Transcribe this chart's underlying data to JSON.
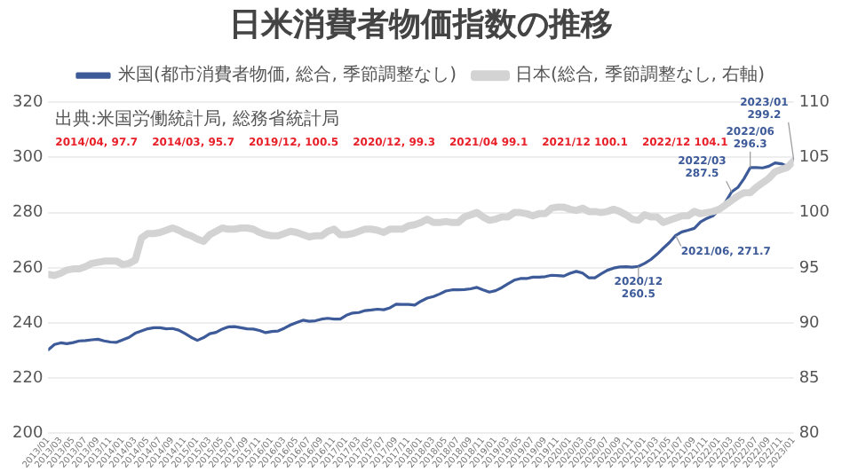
{
  "chart_data": {
    "type": "line",
    "title": "日米消費者物価指数の推移",
    "x": [
      "2013-01",
      "2013-02",
      "2013-03",
      "2013-04",
      "2013-05",
      "2013-06",
      "2013-07",
      "2013-08",
      "2013-09",
      "2013-10",
      "2013-11",
      "2013-12",
      "2014-01",
      "2014-02",
      "2014-03",
      "2014-04",
      "2014-05",
      "2014-06",
      "2014-07",
      "2014-08",
      "2014-09",
      "2014-10",
      "2014-11",
      "2014-12",
      "2015-01",
      "2015-02",
      "2015-03",
      "2015-04",
      "2015-05",
      "2015-06",
      "2015-07",
      "2015-08",
      "2015-09",
      "2015-10",
      "2015-11",
      "2015-12",
      "2016-01",
      "2016-02",
      "2016-03",
      "2016-04",
      "2016-05",
      "2016-06",
      "2016-07",
      "2016-08",
      "2016-09",
      "2016-10",
      "2016-11",
      "2016-12",
      "2017-01",
      "2017-02",
      "2017-03",
      "2017-04",
      "2017-05",
      "2017-06",
      "2017-07",
      "2017-08",
      "2017-09",
      "2017-10",
      "2017-11",
      "2017-12",
      "2018-01",
      "2018-02",
      "2018-03",
      "2018-04",
      "2018-05",
      "2018-06",
      "2018-07",
      "2018-08",
      "2018-09",
      "2018-10",
      "2018-11",
      "2018-12",
      "2019-01",
      "2019-02",
      "2019-03",
      "2019-04",
      "2019-05",
      "2019-06",
      "2019-07",
      "2019-08",
      "2019-09",
      "2019-10",
      "2019-11",
      "2019-12",
      "2020-01",
      "2020-02",
      "2020-03",
      "2020-04",
      "2020-05",
      "2020-06",
      "2020-07",
      "2020-08",
      "2020-09",
      "2020-10",
      "2020-11",
      "2020-12",
      "2021-01",
      "2021-02",
      "2021-03",
      "2021-04",
      "2021-05",
      "2021-06",
      "2021-07",
      "2021-08",
      "2021-09",
      "2021-10",
      "2021-11",
      "2021-12",
      "2022-01",
      "2022-02",
      "2022-03",
      "2022-04",
      "2022-05",
      "2022-06",
      "2022-07",
      "2022-08",
      "2022-09",
      "2022-10",
      "2022-11",
      "2022-12",
      "2023-01"
    ],
    "series": [
      {
        "name": "日本(総合, 季節調整なし, 右軸)",
        "color": "#d3d3d3",
        "axis": "y2",
        "values": [
          94.4,
          94.3,
          94.5,
          94.8,
          94.9,
          94.9,
          95.1,
          95.4,
          95.5,
          95.6,
          95.6,
          95.6,
          95.3,
          95.4,
          95.7,
          97.7,
          98.1,
          98.1,
          98.2,
          98.4,
          98.6,
          98.4,
          98.1,
          97.9,
          97.6,
          97.4,
          98.0,
          98.3,
          98.6,
          98.5,
          98.5,
          98.6,
          98.6,
          98.5,
          98.2,
          98.0,
          97.9,
          97.9,
          98.1,
          98.3,
          98.2,
          98.0,
          97.8,
          97.9,
          97.9,
          98.3,
          98.5,
          98.0,
          98.0,
          98.1,
          98.3,
          98.5,
          98.5,
          98.4,
          98.2,
          98.5,
          98.5,
          98.5,
          98.8,
          98.9,
          99.1,
          99.4,
          99.1,
          99.1,
          99.2,
          99.1,
          99.1,
          99.6,
          99.8,
          100.0,
          99.6,
          99.3,
          99.4,
          99.6,
          99.6,
          100.0,
          100.0,
          99.9,
          99.7,
          99.9,
          99.9,
          100.4,
          100.5,
          100.5,
          100.3,
          100.2,
          100.4,
          100.1,
          100.1,
          100.0,
          100.1,
          100.3,
          100.1,
          99.8,
          99.4,
          99.3,
          99.8,
          99.6,
          99.6,
          99.1,
          99.3,
          99.5,
          99.7,
          99.7,
          100.1,
          99.9,
          100.0,
          100.1,
          100.3,
          100.7,
          101.1,
          101.5,
          101.8,
          101.8,
          102.3,
          102.7,
          103.1,
          103.7,
          103.9,
          104.1,
          104.7
        ]
      },
      {
        "name": "米国(都市消費者物価, 総合, 季節調整なし)",
        "color": "#3d5a99",
        "values": [
          230.3,
          232.2,
          232.8,
          232.5,
          232.9,
          233.5,
          233.6,
          233.9,
          234.1,
          233.5,
          233.1,
          233.0,
          233.9,
          234.8,
          236.3,
          237.1,
          237.9,
          238.3,
          238.3,
          237.9,
          238.0,
          237.4,
          236.2,
          234.8,
          233.7,
          234.7,
          236.1,
          236.6,
          237.8,
          238.6,
          238.7,
          238.3,
          237.9,
          237.8,
          237.3,
          236.5,
          236.9,
          237.1,
          238.1,
          239.3,
          240.2,
          241.0,
          240.6,
          240.8,
          241.4,
          241.7,
          241.4,
          241.4,
          242.8,
          243.6,
          243.8,
          244.5,
          244.7,
          245.0,
          244.8,
          245.5,
          246.8,
          246.7,
          246.7,
          246.5,
          247.9,
          249.0,
          249.6,
          250.5,
          251.6,
          252.0,
          252.0,
          252.1,
          252.4,
          252.9,
          252.0,
          251.2,
          251.7,
          252.8,
          254.2,
          255.5,
          256.1,
          256.1,
          256.6,
          256.6,
          256.8,
          257.3,
          257.2,
          257.0,
          258.0,
          258.7,
          258.1,
          256.4,
          256.4,
          257.8,
          259.1,
          259.9,
          260.3,
          260.4,
          260.2,
          260.5,
          261.6,
          263.0,
          264.9,
          267.1,
          269.2,
          271.7,
          273.0,
          273.6,
          274.3,
          276.6,
          277.9,
          278.8,
          281.1,
          283.7,
          287.5,
          289.1,
          292.3,
          296.3,
          296.3,
          296.2,
          296.8,
          298.0,
          297.7,
          296.8,
          299.2
        ]
      }
    ],
    "xlim": [
      "2013-01",
      "2023-01"
    ],
    "xticks": [
      {
        "value": "2013-01",
        "label": "2013/01"
      },
      {
        "value": "2013-03",
        "label": "2013/03"
      },
      {
        "value": "2013-05",
        "label": "2013/05"
      },
      {
        "value": "2013-07",
        "label": "2013/07"
      },
      {
        "value": "2013-09",
        "label": "2013/09"
      },
      {
        "value": "2013-11",
        "label": "2013/11"
      },
      {
        "value": "2014-01",
        "label": "2014/01"
      },
      {
        "value": "2014-03",
        "label": "2014/03"
      },
      {
        "value": "2014-05",
        "label": "2014/05"
      },
      {
        "value": "2014-07",
        "label": "2014/07"
      },
      {
        "value": "2014-09",
        "label": "2014/09"
      },
      {
        "value": "2014-11",
        "label": "2014/11"
      },
      {
        "value": "2015-01",
        "label": "2015/01"
      },
      {
        "value": "2015-03",
        "label": "2015/03"
      },
      {
        "value": "2015-05",
        "label": "2015/05"
      },
      {
        "value": "2015-07",
        "label": "2015/07"
      },
      {
        "value": "2015-09",
        "label": "2015/09"
      },
      {
        "value": "2015-11",
        "label": "2015/11"
      },
      {
        "value": "2016-01",
        "label": "2016/01"
      },
      {
        "value": "2016-03",
        "label": "2016/03"
      },
      {
        "value": "2016-05",
        "label": "2016/05"
      },
      {
        "value": "2016-07",
        "label": "2016/07"
      },
      {
        "value": "2016-09",
        "label": "2016/09"
      },
      {
        "value": "2016-11",
        "label": "2016/11"
      },
      {
        "value": "2017-01",
        "label": "2017/01"
      },
      {
        "value": "2017-03",
        "label": "2017/03"
      },
      {
        "value": "2017-05",
        "label": "2017/05"
      },
      {
        "value": "2017-07",
        "label": "2017/07"
      },
      {
        "value": "2017-09",
        "label": "2017/09"
      },
      {
        "value": "2017-11",
        "label": "2017/11"
      },
      {
        "value": "2018-01",
        "label": "2018/01"
      },
      {
        "value": "2018-03",
        "label": "2018/03"
      },
      {
        "value": "2018-05",
        "label": "2018/05"
      },
      {
        "value": "2018-07",
        "label": "2018/07"
      },
      {
        "value": "2018-09",
        "label": "2018/09"
      },
      {
        "value": "2018-11",
        "label": "2018/11"
      },
      {
        "value": "2019-01",
        "label": "2019/01"
      },
      {
        "value": "2019-03",
        "label": "2019/03"
      },
      {
        "value": "2019-05",
        "label": "2019/05"
      },
      {
        "value": "2019-07",
        "label": "2019/07"
      },
      {
        "value": "2019-09",
        "label": "2019/09"
      },
      {
        "value": "2019-11",
        "label": "2019/11"
      },
      {
        "value": "2020-01",
        "label": "2020/01"
      },
      {
        "value": "2020-03",
        "label": "2020/03"
      },
      {
        "value": "2020-05",
        "label": "2020/05"
      },
      {
        "value": "2020-07",
        "label": "2020/07"
      },
      {
        "value": "2020-09",
        "label": "2020/09"
      },
      {
        "value": "2020-11",
        "label": "2020/11"
      },
      {
        "value": "2021-01",
        "label": "2021/01"
      },
      {
        "value": "2021-03",
        "label": "2021/03"
      },
      {
        "value": "2021-05",
        "label": "2021/05"
      },
      {
        "value": "2021-07",
        "label": "2021/07"
      },
      {
        "value": "2021-09",
        "label": "2021/09"
      },
      {
        "value": "2021-11",
        "label": "2021/11"
      },
      {
        "value": "2022-01",
        "label": "2022/01"
      },
      {
        "value": "2022-03",
        "label": "2022/03"
      },
      {
        "value": "2022-05",
        "label": "2022/05"
      },
      {
        "value": "2022-07",
        "label": "2022/07"
      },
      {
        "value": "2022-09",
        "label": "2022/09"
      },
      {
        "value": "2022-11",
        "label": "2022/11"
      },
      {
        "value": "2023-01",
        "label": "2023/01"
      }
    ],
    "ylim": [
      200,
      320
    ],
    "yticks": [
      200,
      220,
      240,
      260,
      280,
      300,
      320
    ],
    "y2lim": [
      80,
      110
    ],
    "y2ticks": [
      80,
      85,
      90,
      95,
      100,
      105,
      110
    ],
    "grid": "y",
    "legend": "top",
    "annotations": [
      "出典:米国労働統計局, 総務省統計局",
      "2014/04, 97.7",
      "2014/03, 95.7",
      "2019/12, 100.5",
      "2020/12, 99.3",
      "2021/04\n99.1",
      "2021/12\n100.1",
      "2022/12\n104.1",
      {
        "text": "2020/12\n260.5",
        "x": "2020-12",
        "y": 260.5
      },
      {
        "text": "2021/06, 271.7",
        "x": "2021-06",
        "y": 271.7
      },
      {
        "text": "2022/03\n287.5",
        "x": "2022-03",
        "y": 287.5
      },
      {
        "text": "2022/06\n296.3",
        "x": "2022-06",
        "y": 296.3
      },
      {
        "text": "2023/01\n299.2",
        "x": "2023-01",
        "y": 299.2
      }
    ]
  }
}
